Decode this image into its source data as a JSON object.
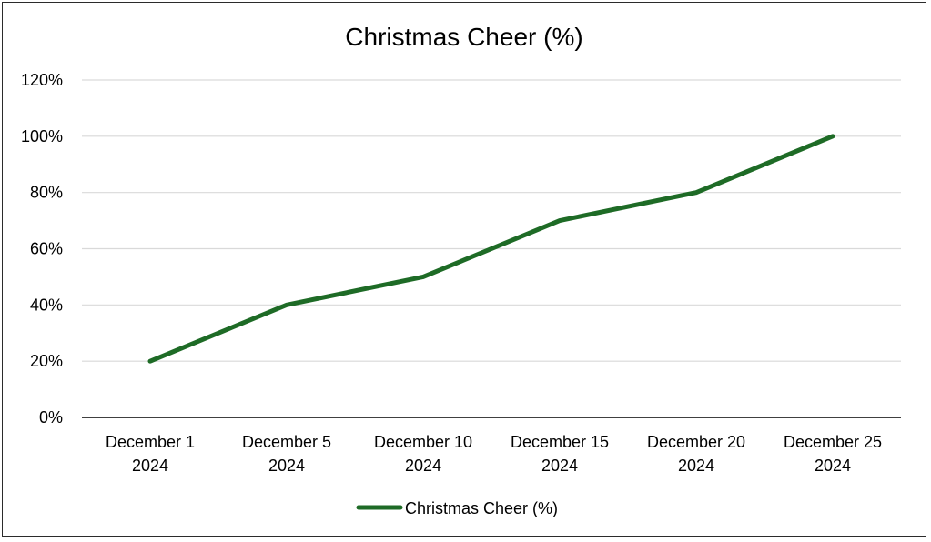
{
  "chart_data": {
    "type": "line",
    "title": "Christmas Cheer (%)",
    "xlabel": "",
    "ylabel": "",
    "categories": [
      [
        "December 1",
        "2024"
      ],
      [
        "December 5",
        "2024"
      ],
      [
        "December 10",
        "2024"
      ],
      [
        "December 15",
        "2024"
      ],
      [
        "December 20",
        "2024"
      ],
      [
        "December 25",
        "2024"
      ]
    ],
    "series": [
      {
        "name": "Christmas Cheer (%)",
        "values": [
          20,
          40,
          50,
          70,
          80,
          100
        ],
        "color": "#1e6b26"
      }
    ],
    "ylim": [
      0,
      120
    ],
    "yticks": [
      0,
      20,
      40,
      60,
      80,
      100,
      120
    ],
    "ytick_labels": [
      "0%",
      "20%",
      "40%",
      "60%",
      "80%",
      "100%",
      "120%"
    ],
    "grid": true,
    "grid_color": "#d9d9d9",
    "axis_color": "#000000",
    "legend_position": "bottom"
  }
}
